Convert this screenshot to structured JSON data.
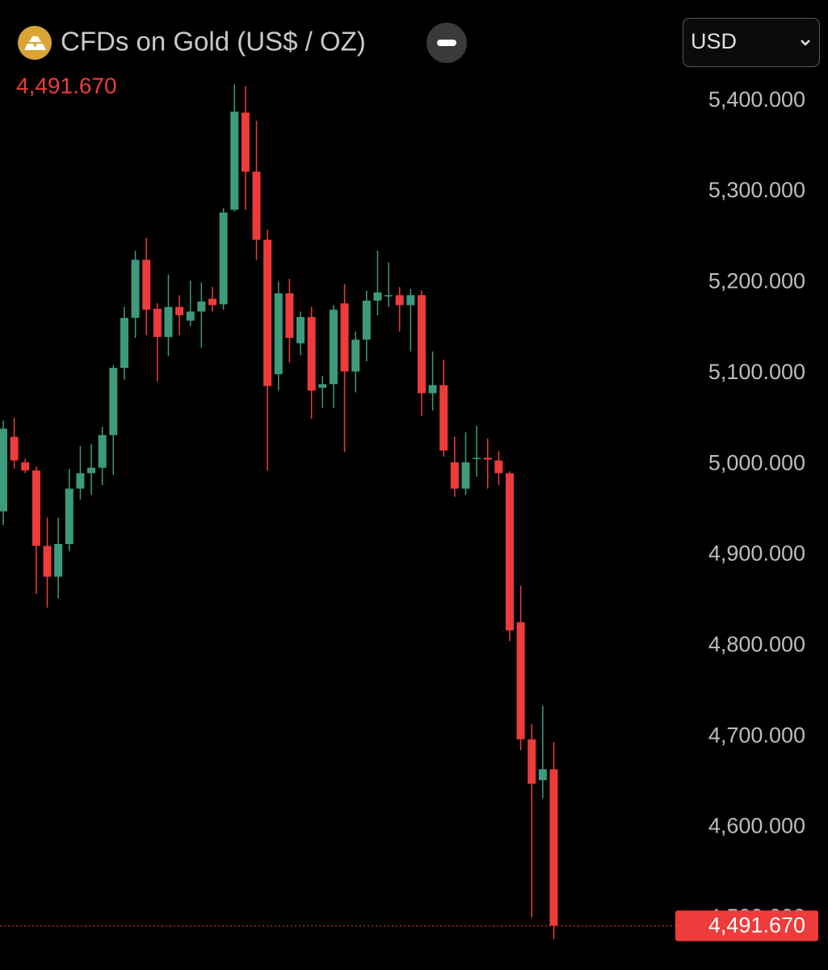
{
  "header": {
    "title": "CFDs on Gold (US$ / OZ)",
    "currency": "USD"
  },
  "chart_data": {
    "type": "candlestick",
    "price_label": "4,491.670",
    "up_color": "#3d9a7d",
    "down_color": "#ee3b3b",
    "ylim": [
      4443,
      5511
    ],
    "yticks": [
      {
        "value": 4500,
        "label": "4,500.000"
      },
      {
        "value": 4600,
        "label": "4,600.000"
      },
      {
        "value": 4700,
        "label": "4,700.000"
      },
      {
        "value": 4800,
        "label": "4,800.000"
      },
      {
        "value": 4900,
        "label": "4,900.000"
      },
      {
        "value": 5000,
        "label": "5,000.000"
      },
      {
        "value": 5100,
        "label": "5,100.000"
      },
      {
        "value": 5200,
        "label": "5,200.000"
      },
      {
        "value": 5300,
        "label": "5,300.000"
      },
      {
        "value": 5400,
        "label": "5,400.000"
      }
    ],
    "open": [
      4948,
      5030,
      5002,
      4993,
      4910,
      4876,
      4912,
      4973,
      4990,
      4996,
      5032,
      5106,
      5161,
      5225,
      5171,
      5140,
      5173,
      5158,
      5168,
      5182,
      5176,
      5280,
      5387,
      5322,
      5247,
      5099,
      5188,
      5133,
      5162,
      5084,
      5088,
      5177,
      5102,
      5137,
      5180,
      5185,
      5186,
      5175,
      5186,
      5078,
      5087,
      5002,
      4973,
      5006,
      5007,
      5004,
      4990,
      4826,
      4697,
      4652,
      4664
    ],
    "high": [
      5048,
      5051,
      5006,
      4997,
      4941,
      4941,
      4995,
      5020,
      5022,
      5041,
      5109,
      5173,
      5235,
      5249,
      5177,
      5209,
      5186,
      5202,
      5200,
      5195,
      5282,
      5418,
      5416,
      5378,
      5258,
      5201,
      5204,
      5168,
      5173,
      5097,
      5175,
      5198,
      5146,
      5191,
      5235,
      5222,
      5195,
      5193,
      5191,
      5124,
      5115,
      5030,
      5035,
      5042,
      5028,
      5014,
      4992,
      4866,
      4714,
      4734,
      4694
    ],
    "low": [
      4933,
      4995,
      4990,
      4857,
      4842,
      4852,
      4904,
      4961,
      4966,
      4977,
      4988,
      5093,
      5139,
      5142,
      5091,
      5119,
      5142,
      5152,
      5128,
      5168,
      5170,
      5278,
      5280,
      5225,
      4993,
      5081,
      5112,
      5120,
      5050,
      5062,
      5062,
      5013,
      5079,
      5113,
      5164,
      5173,
      5146,
      5124,
      5053,
      5059,
      5008,
      4964,
      4966,
      4986,
      4973,
      4977,
      4805,
      4685,
      4501,
      4632,
      4477
    ],
    "close": [
      5039,
      5004,
      4993,
      4910,
      4876,
      4912,
      4973,
      4990,
      4996,
      5032,
      5106,
      5161,
      5225,
      5170,
      5140,
      5173,
      5164,
      5168,
      5179,
      5175,
      5277,
      5388,
      5322,
      5247,
      5086,
      5188,
      5139,
      5162,
      5081,
      5088,
      5170,
      5102,
      5137,
      5180,
      5189,
      5186,
      5175,
      5186,
      5078,
      5087,
      5015,
      4973,
      5002,
      5007,
      5005,
      4990,
      4817,
      4697,
      4648,
      4664,
      4491.67
    ]
  }
}
